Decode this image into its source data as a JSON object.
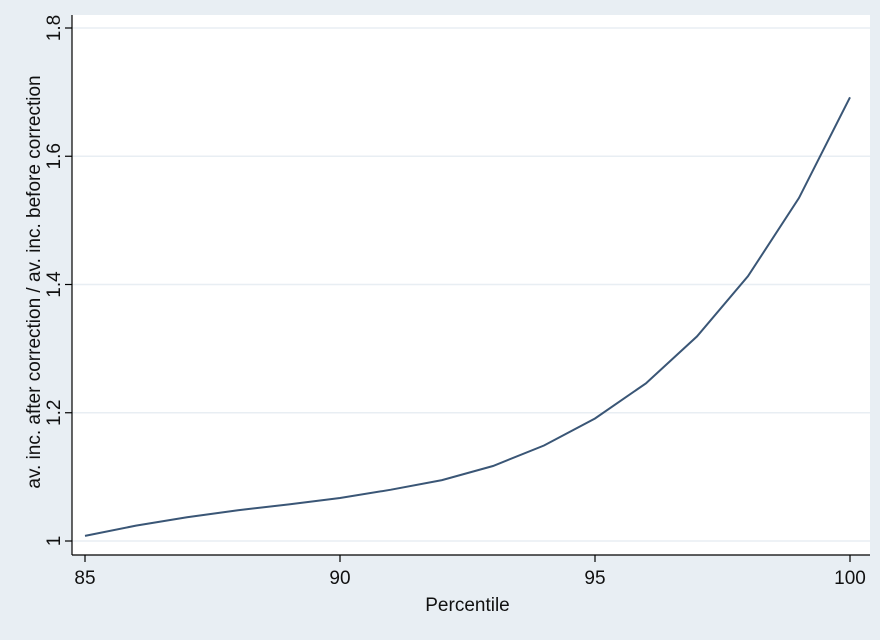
{
  "chart_data": {
    "type": "line",
    "title": "",
    "xlabel": "Percentile",
    "ylabel": "av. inc. after correction / av. inc. before correction",
    "xlim": [
      85,
      100
    ],
    "ylim": [
      1,
      1.8
    ],
    "x_ticks": [
      85,
      90,
      95,
      100
    ],
    "y_ticks": [
      1,
      1.2,
      1.4,
      1.6,
      1.8
    ],
    "x_tick_labels": [
      "85",
      "90",
      "95",
      "100"
    ],
    "y_tick_labels": [
      "1",
      "1.2",
      "1.4",
      "1.6",
      "1.8"
    ],
    "grid": true,
    "legend": "none",
    "series": [
      {
        "x": [
          85,
          86,
          87,
          88,
          89,
          90,
          91,
          92,
          93,
          94,
          95,
          96,
          97,
          98,
          99,
          100
        ],
        "y": [
          1.008,
          1.024,
          1.037,
          1.048,
          1.057,
          1.067,
          1.08,
          1.095,
          1.117,
          1.149,
          1.191,
          1.246,
          1.319,
          1.413,
          1.535,
          1.692
        ]
      }
    ],
    "colors": {
      "line": "#3a5676",
      "background": "#e8eef3",
      "plot_area": "#ffffff",
      "grid": "#e8eef3",
      "axis": "#000000"
    }
  }
}
